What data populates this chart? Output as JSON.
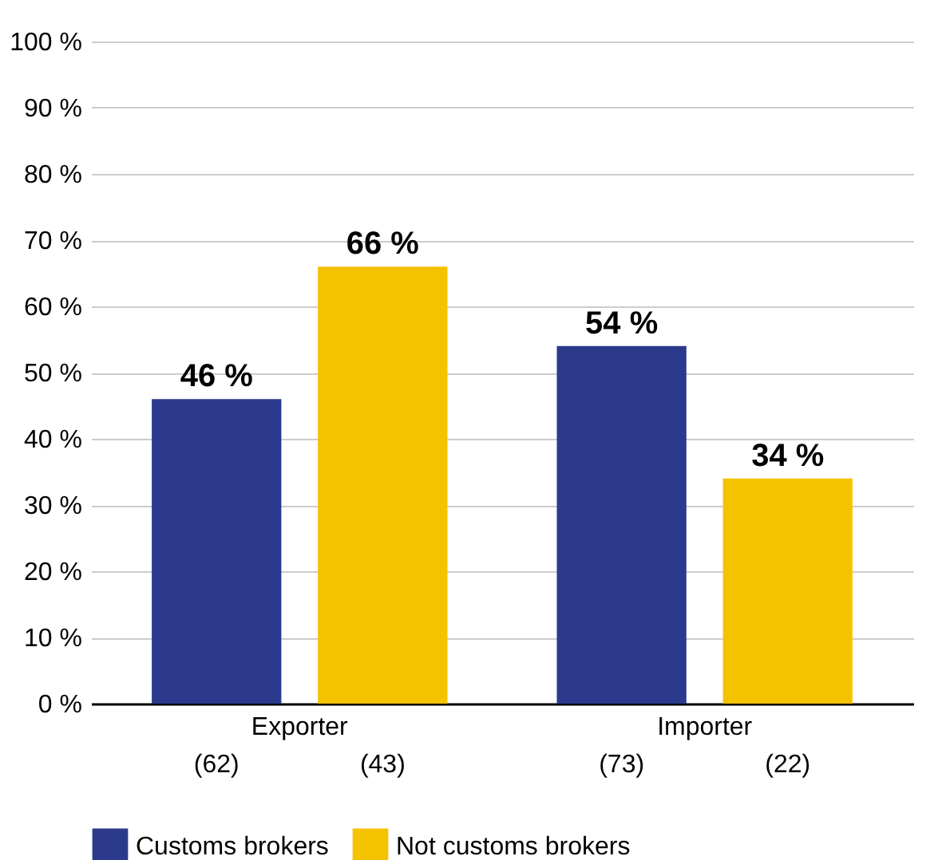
{
  "chart_data": {
    "type": "bar",
    "categories": [
      "Exporter",
      "Importer"
    ],
    "series": [
      {
        "name": "Customs brokers",
        "color": "#2b3a8c",
        "values": [
          46,
          54
        ],
        "value_labels": [
          "46 %",
          "54 %"
        ]
      },
      {
        "name": "Not customs brokers",
        "color": "#f5c200",
        "values": [
          66,
          34
        ],
        "value_labels": [
          "66 %",
          "34 %"
        ]
      }
    ],
    "ylim": [
      0,
      100
    ],
    "yticks": [
      {
        "value": 0,
        "label": "0 %"
      },
      {
        "value": 10,
        "label": "10 %"
      },
      {
        "value": 20,
        "label": "20 %"
      },
      {
        "value": 30,
        "label": "30 %"
      },
      {
        "value": 40,
        "label": "40 %"
      },
      {
        "value": 50,
        "label": "50 %"
      },
      {
        "value": 60,
        "label": "60 %"
      },
      {
        "value": 70,
        "label": "70 %"
      },
      {
        "value": 80,
        "label": "80 %"
      },
      {
        "value": 90,
        "label": "90 %"
      },
      {
        "value": 100,
        "label": "100 %"
      }
    ],
    "annotations": [
      "(62)",
      "(43)",
      "(73)",
      "(22)"
    ],
    "grid": "y",
    "legend": "bottom left"
  }
}
